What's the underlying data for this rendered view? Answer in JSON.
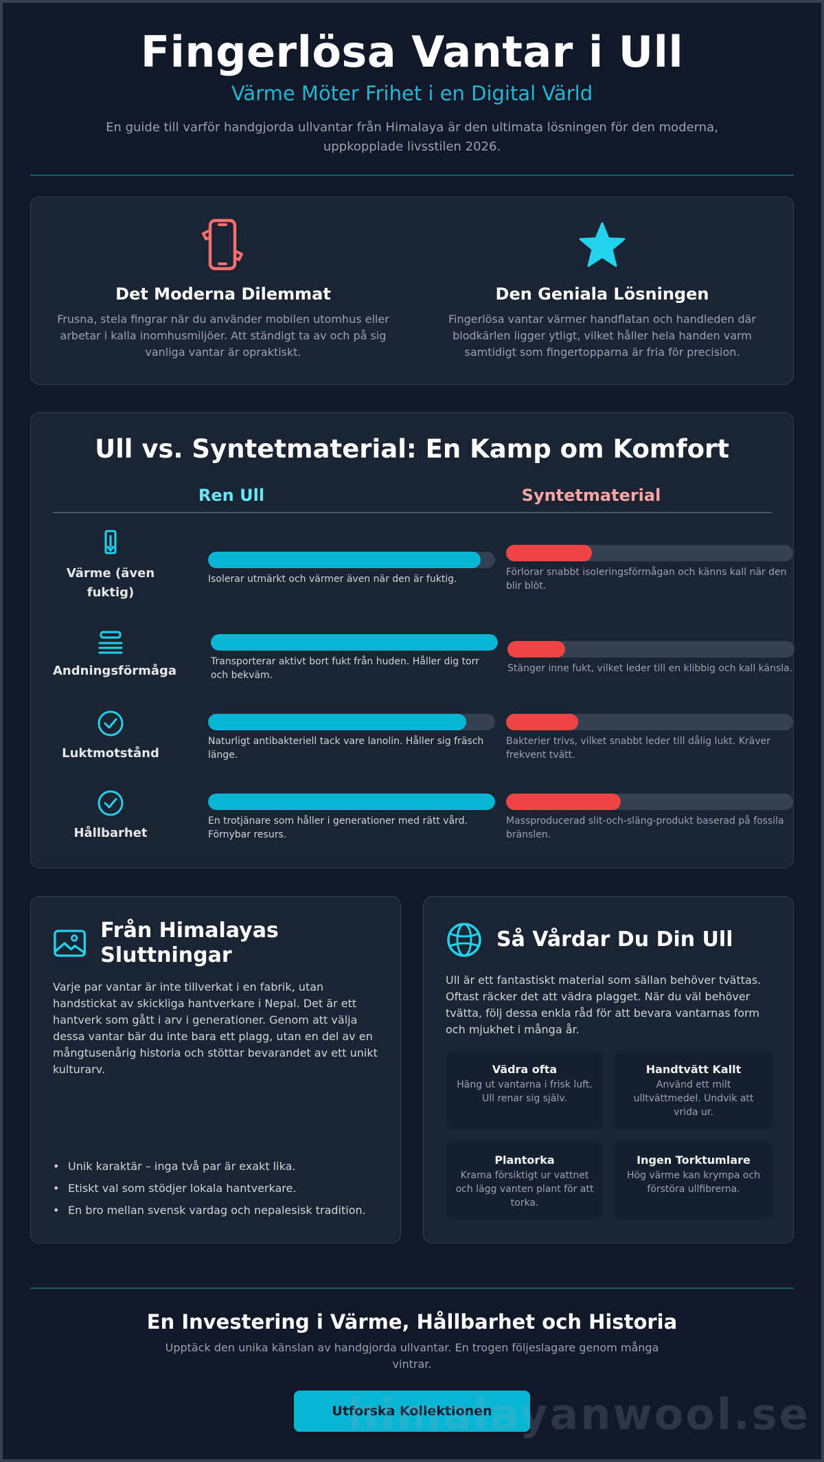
{
  "header": {
    "title": "Fingerlösa Vantar i Ull",
    "subtitle": "Värme Möter Frihet i en Digital Värld",
    "intro": "En guide till varför handgjorda ullvantar från Himalaya är den ultimata lösningen för den moderna, uppkopplade livsstilen 2026."
  },
  "problem": {
    "icon": "smartphone-icon",
    "title": "Det Moderna Dilemmat",
    "text": "Frusna, stela fingrar när du använder mobilen utomhus eller arbetar i kalla inomhusmiljöer. Att ständigt ta av och på sig vanliga vantar är opraktiskt."
  },
  "solution": {
    "icon": "star-icon",
    "title": "Den Geniala Lösningen",
    "text": "Fingerlösa vantar värmer handflatan och handleden där blodkärlen ligger ytligt, vilket håller hela handen varm samtidigt som fingertopparna är fria för precision."
  },
  "comparison": {
    "title": "Ull vs. Syntetmaterial: En Kamp om Komfort",
    "col_wool": "Ren Ull",
    "col_synthetic": "Syntetmaterial",
    "colors": {
      "wool": "#06b6d4",
      "synthetic": "#ef4444"
    },
    "rows": [
      {
        "label": "Värme (även fuktig)",
        "icon": "thermometer-icon",
        "wool_level": 0.95,
        "wool_text": "Isolerar utmärkt och värmer även när den är fuktig.",
        "synthetic_level": 0.3,
        "synthetic_text": "Förlorar snabbt isoleringsförmågan och känns kall när den blir blöt."
      },
      {
        "label": "Andningsförmåga",
        "icon": "layers-icon",
        "wool_level": 1.0,
        "wool_text": "Transporterar aktivt bort fukt från huden. Håller dig torr och bekväm.",
        "synthetic_level": 0.2,
        "synthetic_text": "Stänger inne fukt, vilket leder till en klibbig och kall känsla."
      },
      {
        "label": "Luktmotstånd",
        "icon": "check-circle-icon",
        "wool_level": 0.9,
        "wool_text": "Naturligt antibakteriell tack vare lanolin. Håller sig fräsch länge.",
        "synthetic_level": 0.25,
        "synthetic_text": "Bakterier trivs, vilket snabbt leder till dålig lukt. Kräver frekvent tvätt."
      },
      {
        "label": "Hållbarhet",
        "icon": "check-circle-icon",
        "wool_level": 1.0,
        "wool_text": "En trotjänare som håller i generationer med rätt vård. Förnybar resurs.",
        "synthetic_level": 0.4,
        "synthetic_text": "Massproducerad slit-och-släng-produkt baserad på fossila bränslen."
      }
    ]
  },
  "origin": {
    "icon": "image-icon",
    "title": "Från Himalayas Sluttningar",
    "text": "Varje par vantar är inte tillverkat i en fabrik, utan handstickat av skickliga hantverkare i Nepal. Det är ett hantverk som gått i arv i generationer. Genom att välja dessa vantar bär du inte bara ett plagg, utan en del av en mångtusenårig historia och stöttar bevarandet av ett unikt kulturarv.",
    "bullets": [
      "Unik karaktär – inga två par är exakt lika.",
      "Etiskt val som stödjer lokala hantverkare.",
      "En bro mellan svensk vardag och nepalesisk tradition."
    ]
  },
  "care": {
    "icon": "globe-icon",
    "title": "Så Vårdar Du Din Ull",
    "text": "Ull är ett fantastiskt material som sällan behöver tvättas. Oftast räcker det att vädra plagget. När du väl behöver tvätta, följ dessa enkla råd för att bevara vantarnas form och mjukhet i många år.",
    "tips": [
      {
        "title": "Vädra ofta",
        "text": "Häng ut vantarna i frisk luft. Ull renar sig själv."
      },
      {
        "title": "Handtvätt Kallt",
        "text": "Använd ett milt ulltvättmedel. Undvik att vrida ur."
      },
      {
        "title": "Plantorka",
        "text": "Krama försiktigt ur vattnet och lägg vanten plant för att torka."
      },
      {
        "title": "Ingen Torktumlare",
        "text": "Hög värme kan krympa och förstöra ullfibrerna."
      }
    ]
  },
  "cta": {
    "title": "En Investering i Värme, Hållbarhet och Historia",
    "text": "Upptäck den unika känslan av handgjorda ullvantar. En trogen följeslagare genom många vintrar.",
    "button": "Utforska Kollektionen",
    "watermark": "himalayanwool.se"
  }
}
